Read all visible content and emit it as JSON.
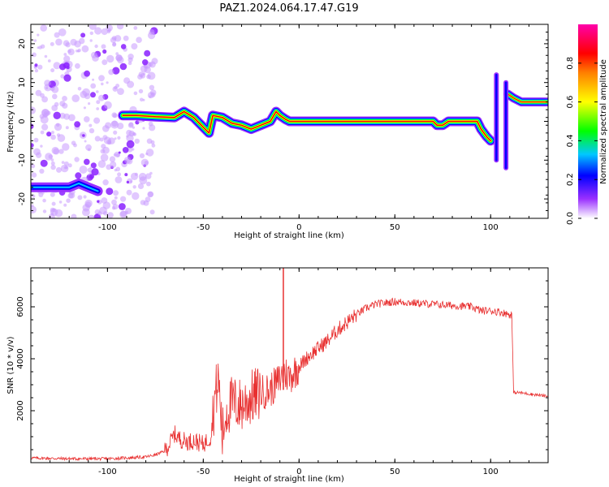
{
  "title": "PAZ1.2024.064.17.47.G19",
  "chart_data": [
    {
      "type": "heatmap",
      "xlabel": "Height of straight line (km)",
      "ylabel": "Frequency (Hz)",
      "xlim": [
        -140,
        130
      ],
      "ylim": [
        -25,
        25
      ],
      "xticks": [
        -100,
        -50,
        0,
        50,
        100
      ],
      "yticks": [
        -20,
        -10,
        0,
        10,
        20
      ],
      "colorbar": {
        "label": "Normalized spectral amplitude",
        "range": [
          0,
          1
        ],
        "ticks": [
          0.0,
          0.2,
          0.4,
          0.6,
          0.8
        ],
        "colormap": "gist_ncar_r",
        "colors": [
          "#ffffff",
          "#9a30ff",
          "#0000ff",
          "#00c8ff",
          "#00ff00",
          "#ffff00",
          "#ff8000",
          "#ff0000",
          "#ff00aa"
        ]
      },
      "ridge": {
        "x": [
          -92,
          -85,
          -75,
          -65,
          -60,
          -55,
          -50,
          -47,
          -45,
          -40,
          -35,
          -30,
          -25,
          -20,
          -15,
          -12,
          -10,
          -7,
          -5,
          -3,
          0,
          20,
          40,
          60,
          70,
          72,
          75,
          78,
          85,
          93,
          95,
          98,
          100
        ],
        "y": [
          1.5,
          1.5,
          1.2,
          1.0,
          2.5,
          1.0,
          -1.5,
          -3.0,
          1.5,
          1.0,
          -0.5,
          -1.0,
          -2.0,
          -1.0,
          0.0,
          2.5,
          1.5,
          0.5,
          0.0,
          0.0,
          0.0,
          0.0,
          0.0,
          0.0,
          0.0,
          -1.0,
          -1.0,
          0.0,
          0.0,
          0.0,
          -2.0,
          -4.0,
          -5.0
        ]
      },
      "ridge_second": {
        "x": [
          109,
          112,
          116,
          120,
          125,
          130
        ],
        "y": [
          7.0,
          6.0,
          5.0,
          5.0,
          5.0,
          5.0
        ]
      },
      "low_frequency_band": {
        "x": [
          -140,
          -130,
          -120,
          -115,
          -110,
          -105
        ],
        "y": [
          -17,
          -17,
          -17,
          -16,
          -17,
          -18
        ]
      }
    },
    {
      "type": "line",
      "xlabel": "Height of straight line (km)",
      "ylabel": "SNR (10 * v/v)",
      "xlim": [
        -140,
        130
      ],
      "ylim": [
        0,
        7500
      ],
      "xticks": [
        -100,
        -50,
        0,
        50,
        100
      ],
      "yticks": [
        2000,
        4000,
        6000
      ],
      "series": [
        {
          "color": "#e83030",
          "x": [
            -140,
            -120,
            -100,
            -85,
            -80,
            -75,
            -70,
            -67,
            -65,
            -62,
            -58,
            -55,
            -50,
            -46,
            -44,
            -42,
            -40,
            -38,
            -35,
            -30,
            -25,
            -20,
            -15,
            -10,
            -8,
            -5,
            0,
            5,
            10,
            15,
            20,
            25,
            30,
            35,
            40,
            50,
            60,
            70,
            80,
            90,
            95,
            100,
            105,
            110,
            111,
            112,
            115,
            120,
            125,
            130
          ],
          "y": [
            180,
            150,
            150,
            200,
            220,
            300,
            450,
            800,
            1100,
            900,
            800,
            850,
            700,
            1000,
            2500,
            3200,
            1000,
            2000,
            2300,
            2200,
            2500,
            2700,
            2800,
            3200,
            3500,
            3300,
            3700,
            4100,
            4400,
            4700,
            5100,
            5400,
            5700,
            5950,
            6100,
            6200,
            6150,
            6100,
            6050,
            6000,
            5850,
            5850,
            5800,
            5700,
            5700,
            2700,
            2700,
            2650,
            2600,
            2550
          ]
        }
      ]
    }
  ]
}
